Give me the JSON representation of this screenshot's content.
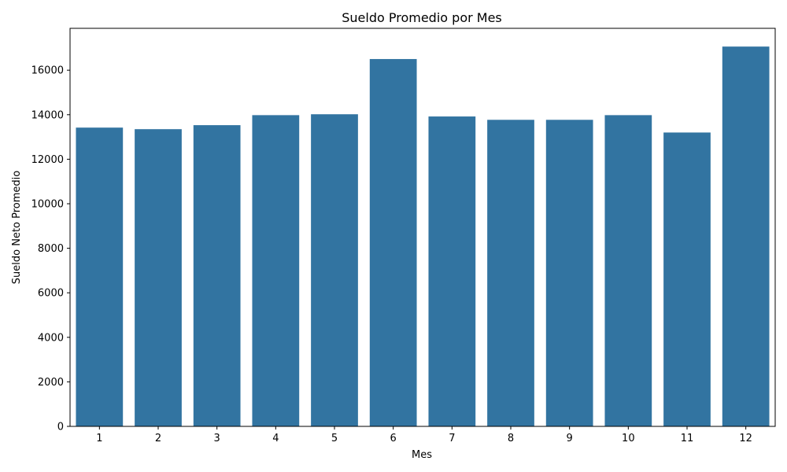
{
  "chart_data": {
    "type": "bar",
    "title": "Sueldo Promedio por Mes",
    "xlabel": "Mes",
    "ylabel": "Sueldo Neto Promedio",
    "categories": [
      "1",
      "2",
      "3",
      "4",
      "5",
      "6",
      "7",
      "8",
      "9",
      "10",
      "11",
      "12"
    ],
    "values": [
      13420,
      13350,
      13530,
      13980,
      14020,
      16500,
      13920,
      13770,
      13770,
      13980,
      13200,
      17060
    ],
    "ylim": [
      0,
      17880
    ],
    "yticks": [
      0,
      2000,
      4000,
      6000,
      8000,
      10000,
      12000,
      14000,
      16000
    ],
    "grid": false,
    "bar_color": "#3274a1"
  }
}
